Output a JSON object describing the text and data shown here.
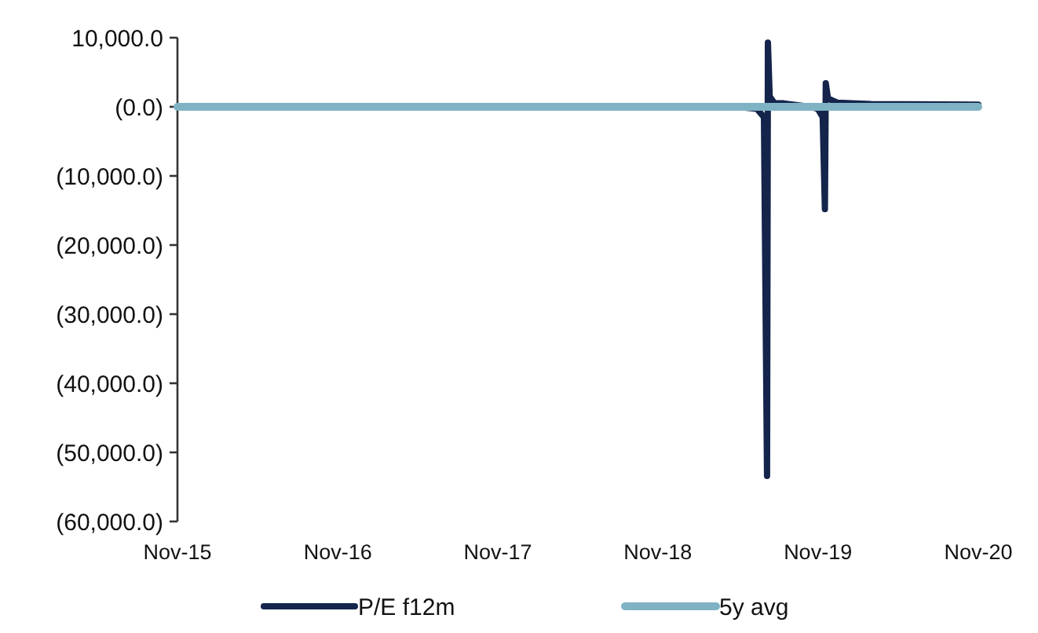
{
  "chart_data": {
    "type": "line",
    "legend": "bottom",
    "grid": false,
    "marker": "none",
    "line_style": "solid",
    "ylim": [
      -60000,
      10000
    ],
    "yticks": [
      {
        "value": 10000,
        "label": "10,000.0"
      },
      {
        "value": 0,
        "label": "(0.0)"
      },
      {
        "value": -10000,
        "label": "(10,000.0)"
      },
      {
        "value": -20000,
        "label": "(20,000.0)"
      },
      {
        "value": -30000,
        "label": "(30,000.0)"
      },
      {
        "value": -40000,
        "label": "(40,000.0)"
      },
      {
        "value": -50000,
        "label": "(50,000.0)"
      },
      {
        "value": -60000,
        "label": "(60,000.0)"
      }
    ],
    "xlim": [
      "2015-11",
      "2020-11"
    ],
    "xticks": [
      {
        "value": "2015-11",
        "label": "Nov-15"
      },
      {
        "value": "2016-11",
        "label": "Nov-16"
      },
      {
        "value": "2017-11",
        "label": "Nov-17"
      },
      {
        "value": "2018-11",
        "label": "Nov-18"
      },
      {
        "value": "2019-11",
        "label": "Nov-19"
      },
      {
        "value": "2020-11",
        "label": "Nov-20"
      }
    ],
    "series": [
      {
        "name": "P/E f12m",
        "color": "#14244b",
        "x": [
          "2015-11-01",
          "2019-05-01",
          "2019-06-15",
          "2019-07-01",
          "2019-07-08",
          "2019-07-10",
          "2019-07-14",
          "2019-07-25",
          "2019-08-15",
          "2019-10-15",
          "2019-11-01",
          "2019-11-12",
          "2019-11-17",
          "2019-11-19",
          "2019-11-24",
          "2019-12-15",
          "2020-03-01",
          "2020-11-01"
        ],
        "values": [
          0,
          0,
          -300,
          -1500,
          -53400,
          9300,
          1500,
          500,
          500,
          0,
          -300,
          -1500,
          -14800,
          3400,
          1200,
          600,
          400,
          300
        ]
      },
      {
        "name": "5y avg",
        "color": "#7fb3c3",
        "x": [
          "2015-11-01",
          "2020-11-01"
        ],
        "values": [
          0,
          0
        ]
      }
    ]
  }
}
